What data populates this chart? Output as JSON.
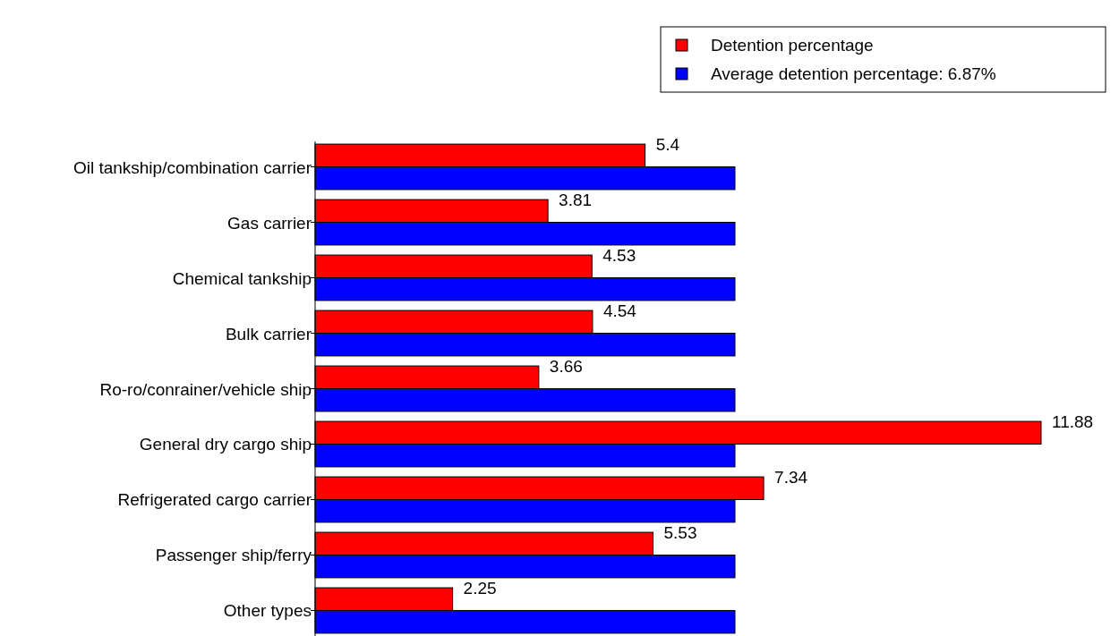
{
  "chart_data": {
    "type": "bar",
    "orientation": "horizontal",
    "categories": [
      "Oil tankship/combination carrier",
      "Gas carrier",
      "Chemical tankship",
      "Bulk carrier",
      "Ro-ro/conrainer/vehicle ship",
      "General dry cargo ship",
      "Refrigerated cargo carrier",
      "Passenger ship/ferry",
      "Other types"
    ],
    "series": [
      {
        "name": "Detention percentage",
        "color": "#ff0000",
        "values": [
          5.4,
          3.81,
          4.53,
          4.54,
          3.66,
          11.88,
          7.34,
          5.53,
          2.25
        ],
        "value_labels": [
          "5.4",
          "3.81",
          "4.53",
          "4.54",
          "3.66",
          "11.88",
          "7.34",
          "5.53",
          "2.25"
        ]
      },
      {
        "name": "Average detention percentage: 6.87%",
        "color": "#0000ff",
        "values": [
          6.87,
          6.87,
          6.87,
          6.87,
          6.87,
          6.87,
          6.87,
          6.87,
          6.87
        ]
      }
    ],
    "legend": "top right"
  }
}
